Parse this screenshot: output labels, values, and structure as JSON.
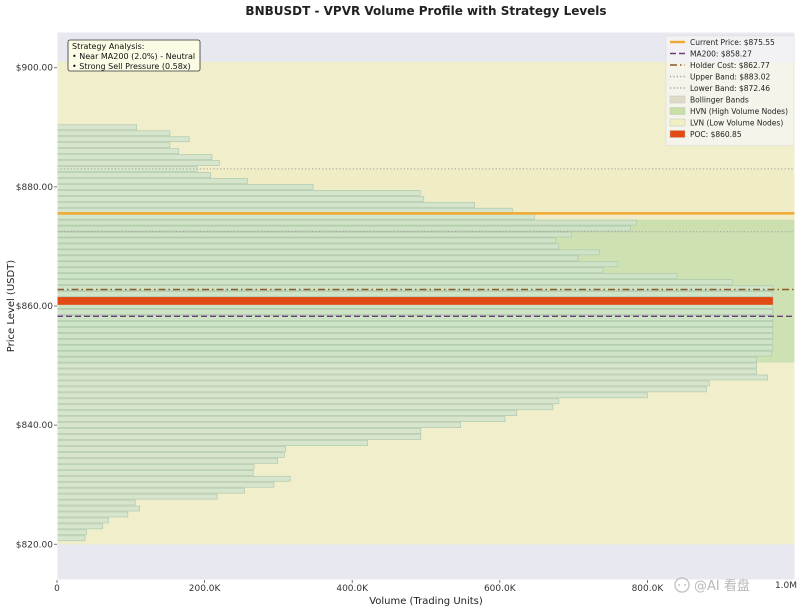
{
  "chart_data": {
    "type": "bar",
    "orientation": "horizontal",
    "title": "BNBUSDT - VPVR Volume Profile with Strategy Levels",
    "xlabel": "Volume (Trading Units)",
    "ylabel": "Price Level (USDT)",
    "xlim": [
      0,
      1000000
    ],
    "ylim": [
      814.0,
      906.0
    ],
    "x_ticks": [
      0,
      200000,
      400000,
      600000,
      800000
    ],
    "x_tick_labels": [
      "0",
      "200.0K",
      "400.0K",
      "600.0K",
      "800.0K"
    ],
    "x_tick_label_clipped": "1.0M",
    "y_ticks": [
      820,
      840,
      860,
      880,
      900
    ],
    "y_tick_labels": [
      "$820.00",
      "$840.00",
      "$860.00",
      "$880.00",
      "$900.00"
    ],
    "grid": false,
    "legend_position": "top-right",
    "bin_height": 1.0,
    "bins": [
      {
        "price": 821.0,
        "volume": 38000
      },
      {
        "price": 822.0,
        "volume": 40000
      },
      {
        "price": 823.0,
        "volume": 62000
      },
      {
        "price": 824.0,
        "volume": 70000
      },
      {
        "price": 825.0,
        "volume": 96000
      },
      {
        "price": 826.0,
        "volume": 112000
      },
      {
        "price": 827.0,
        "volume": 106000
      },
      {
        "price": 828.0,
        "volume": 217000
      },
      {
        "price": 829.0,
        "volume": 254000
      },
      {
        "price": 830.0,
        "volume": 294000
      },
      {
        "price": 831.0,
        "volume": 316000
      },
      {
        "price": 832.0,
        "volume": 266000
      },
      {
        "price": 833.0,
        "volume": 267000
      },
      {
        "price": 834.0,
        "volume": 299000
      },
      {
        "price": 835.0,
        "volume": 308000
      },
      {
        "price": 836.0,
        "volume": 310000
      },
      {
        "price": 837.0,
        "volume": 421000
      },
      {
        "price": 838.0,
        "volume": 493000
      },
      {
        "price": 839.0,
        "volume": 493000
      },
      {
        "price": 840.0,
        "volume": 547000
      },
      {
        "price": 841.0,
        "volume": 607000
      },
      {
        "price": 842.0,
        "volume": 623000
      },
      {
        "price": 843.0,
        "volume": 672000
      },
      {
        "price": 844.0,
        "volume": 680000
      },
      {
        "price": 845.0,
        "volume": 800000
      },
      {
        "price": 846.0,
        "volume": 880000
      },
      {
        "price": 847.0,
        "volume": 884000
      },
      {
        "price": 848.0,
        "volume": 963000
      },
      {
        "price": 849.0,
        "volume": 948000
      },
      {
        "price": 850.0,
        "volume": 948000
      },
      {
        "price": 851.0,
        "volume": 948000
      },
      {
        "price": 852.0,
        "volume": 968000
      },
      {
        "price": 853.0,
        "volume": 975000
      },
      {
        "price": 854.0,
        "volume": 990000
      },
      {
        "price": 855.0,
        "volume": 1000000
      },
      {
        "price": 856.0,
        "volume": 1000000
      },
      {
        "price": 857.0,
        "volume": 1000000
      },
      {
        "price": 858.0,
        "volume": 1000000
      },
      {
        "price": 859.0,
        "volume": 1000000
      },
      {
        "price": 860.0,
        "volume": 1000000
      },
      {
        "price": 861.0,
        "volume": 1000000
      },
      {
        "price": 862.0,
        "volume": 1000000
      },
      {
        "price": 863.0,
        "volume": 1000000
      },
      {
        "price": 864.0,
        "volume": 915000
      },
      {
        "price": 865.0,
        "volume": 840000
      },
      {
        "price": 866.0,
        "volume": 740000
      },
      {
        "price": 867.0,
        "volume": 760000
      },
      {
        "price": 868.0,
        "volume": 706000
      },
      {
        "price": 869.0,
        "volume": 735000
      },
      {
        "price": 870.0,
        "volume": 680000
      },
      {
        "price": 871.0,
        "volume": 676000
      },
      {
        "price": 872.0,
        "volume": 697000
      },
      {
        "price": 873.0,
        "volume": 777000
      },
      {
        "price": 874.0,
        "volume": 785000
      },
      {
        "price": 875.0,
        "volume": 647000
      },
      {
        "price": 876.0,
        "volume": 617000
      },
      {
        "price": 877.0,
        "volume": 566000
      },
      {
        "price": 878.0,
        "volume": 497000
      },
      {
        "price": 879.0,
        "volume": 492000
      },
      {
        "price": 880.0,
        "volume": 347000
      },
      {
        "price": 881.0,
        "volume": 258000
      },
      {
        "price": 882.0,
        "volume": 208000
      },
      {
        "price": 883.0,
        "volume": 190000
      },
      {
        "price": 884.0,
        "volume": 220000
      },
      {
        "price": 885.0,
        "volume": 210000
      },
      {
        "price": 886.0,
        "volume": 165000
      },
      {
        "price": 887.0,
        "volume": 153000
      },
      {
        "price": 888.0,
        "volume": 179000
      },
      {
        "price": 889.0,
        "volume": 153000
      },
      {
        "price": 890.0,
        "volume": 108000
      }
    ],
    "bands": [
      {
        "name": "Bollinger Bands",
        "from": 872.46,
        "to": 883.02,
        "color": "#dedcc8"
      },
      {
        "name": "HVN (High Volume Nodes)",
        "from": 850.5,
        "to": 874.5,
        "color": "#c8dfa8"
      },
      {
        "name": "LVN (Low Volume Nodes)",
        "from": 820.0,
        "to": 850.5,
        "color": "#f1efc4"
      },
      {
        "name": "LVN (Low Volume Nodes)",
        "from": 874.5,
        "to": 901.0,
        "color": "#f1efc4"
      }
    ],
    "levels": [
      {
        "name": "Current Price: $875.55",
        "value": 875.55,
        "style": "solid",
        "color": "#f0a830"
      },
      {
        "name": "MA200: $858.27",
        "value": 858.27,
        "style": "dashed",
        "color": "#6a3d7a"
      },
      {
        "name": "Holder Cost: $862.77",
        "value": 862.77,
        "style": "dashdot",
        "color": "#8a5a2a"
      },
      {
        "name": "Upper Band: $883.02",
        "value": 883.02,
        "style": "dotted",
        "color": "#a0a0a0"
      },
      {
        "name": "Lower Band: $872.46",
        "value": 872.46,
        "style": "dotted",
        "color": "#a0a0a0"
      }
    ],
    "poc": {
      "name": "POC: $860.85",
      "value": 860.85,
      "volume": 970000,
      "color": "#e14a12"
    },
    "legend": [
      {
        "label": "Current Price: $875.55",
        "kind": "line",
        "style": "solid",
        "color": "#f0a830"
      },
      {
        "label": "MA200: $858.27",
        "kind": "line",
        "style": "dashed",
        "color": "#6a3d7a"
      },
      {
        "label": "Holder Cost: $862.77",
        "kind": "line",
        "style": "dashdot",
        "color": "#8a5a2a"
      },
      {
        "label": "Upper Band: $883.02",
        "kind": "line",
        "style": "dotted",
        "color": "#a0a0a0"
      },
      {
        "label": "Lower Band: $872.46",
        "kind": "line",
        "style": "dotted",
        "color": "#a0a0a0"
      },
      {
        "label": "Bollinger Bands",
        "kind": "patch",
        "color": "#dedcc8"
      },
      {
        "label": "HVN (High Volume Nodes)",
        "kind": "patch",
        "color": "#c8dfa8"
      },
      {
        "label": "LVN (Low Volume Nodes)",
        "kind": "patch",
        "color": "#f1efc4"
      },
      {
        "label": "POC: $860.85",
        "kind": "patch",
        "color": "#e14a12"
      }
    ],
    "annotation": {
      "lines": [
        "Strategy Analysis:",
        "• Near MA200 (2.0%) - Neutral",
        "• Strong Sell Pressure (0.58x)"
      ]
    },
    "colors": {
      "bar_fill": "#cfe3cc",
      "bar_edge": "#a8c4ac",
      "axes_bg": "#e8e8f0"
    }
  },
  "watermark": "@AI 看盘",
  "icons": {
    "watermark": "chat-bubble-icon"
  }
}
